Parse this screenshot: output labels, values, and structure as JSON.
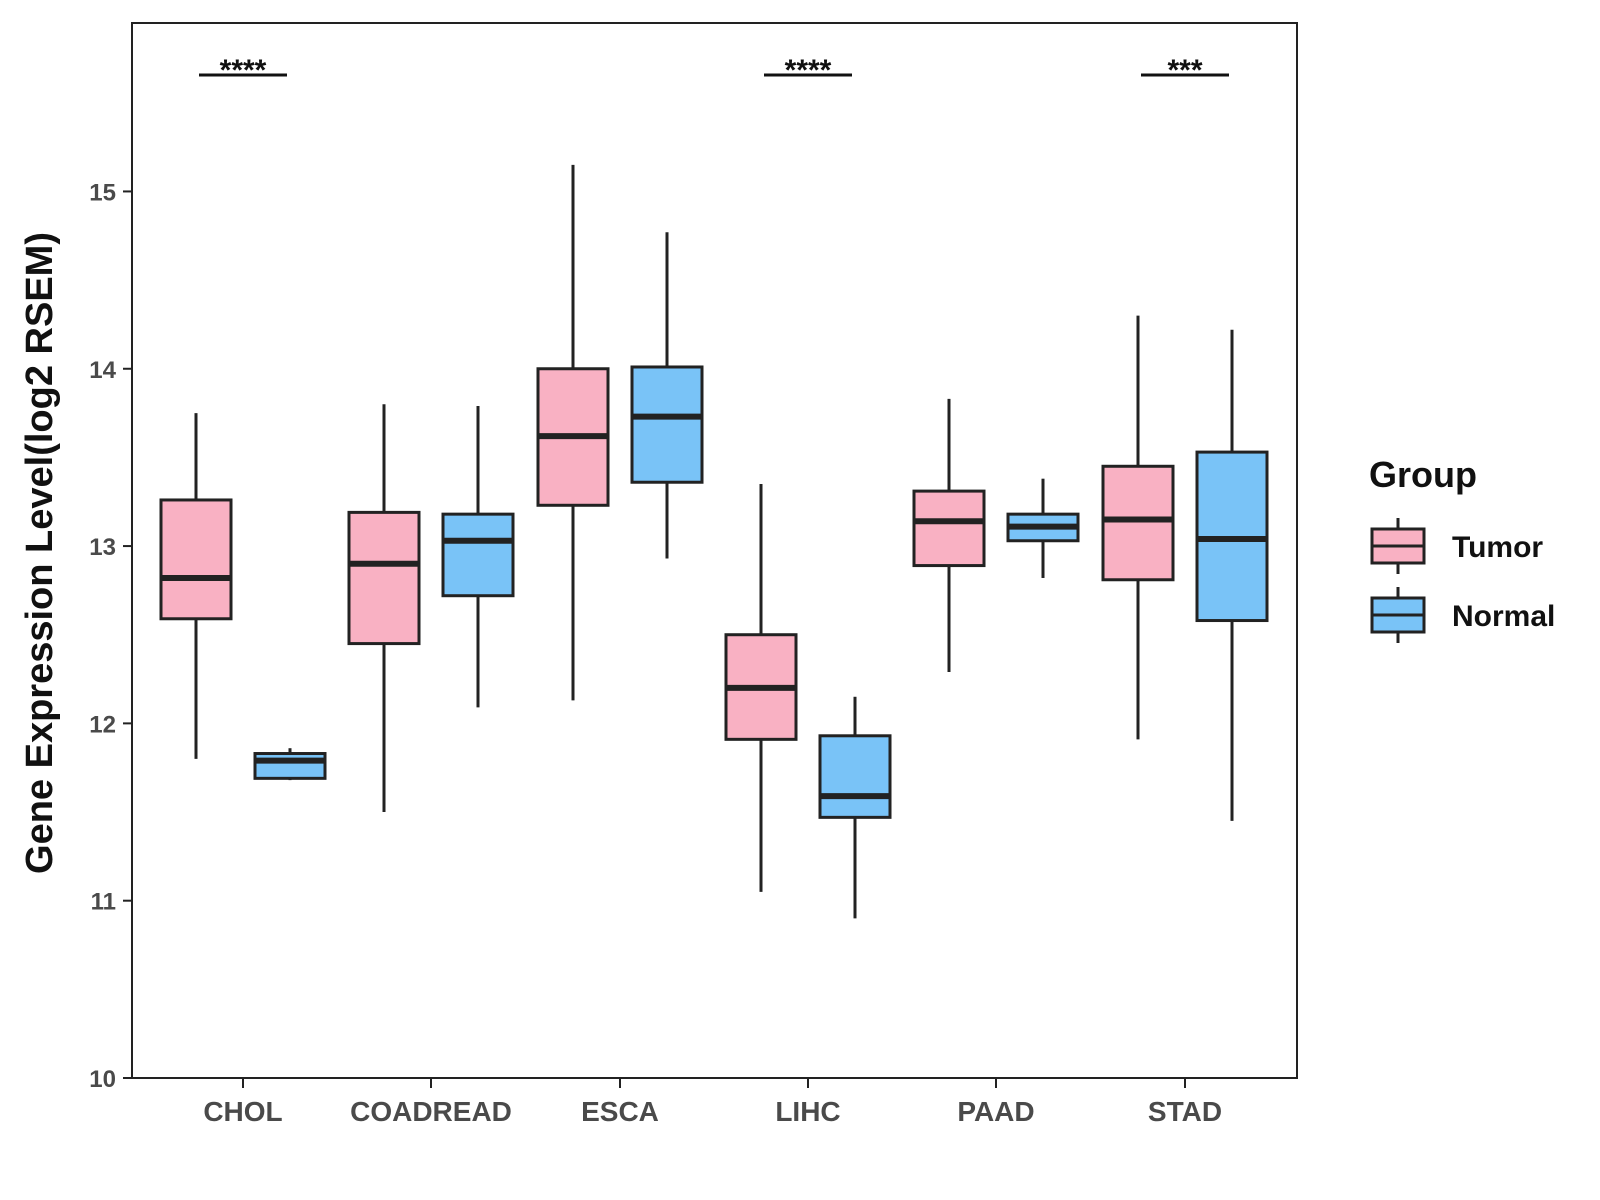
{
  "chart_data": {
    "type": "box",
    "title": "",
    "xlabel": "",
    "ylabel": "Gene Expression Level(log2 RSEM)",
    "ylim": [
      10,
      15.95
    ],
    "yticks": [
      10,
      11,
      12,
      13,
      14,
      15
    ],
    "categories": [
      "CHOL",
      "COADREAD",
      "ESCA",
      "LIHC",
      "PAAD",
      "STAD"
    ],
    "grid": false,
    "legend": {
      "title": "Group",
      "position": "right"
    },
    "colors": {
      "Tumor": "#f9b1c3",
      "Normal": "#79c3f7",
      "stroke": "#222222"
    },
    "series": [
      {
        "name": "Tumor",
        "boxes": [
          {
            "category": "CHOL",
            "min": 11.8,
            "q1": 12.59,
            "median": 12.82,
            "q3": 13.26,
            "max": 13.75
          },
          {
            "category": "COADREAD",
            "min": 11.5,
            "q1": 12.45,
            "median": 12.9,
            "q3": 13.19,
            "max": 13.8
          },
          {
            "category": "ESCA",
            "min": 12.13,
            "q1": 13.23,
            "median": 13.62,
            "q3": 14.0,
            "max": 15.15
          },
          {
            "category": "LIHC",
            "min": 11.05,
            "q1": 11.91,
            "median": 12.2,
            "q3": 12.5,
            "max": 13.35
          },
          {
            "category": "PAAD",
            "min": 12.29,
            "q1": 12.89,
            "median": 13.14,
            "q3": 13.31,
            "max": 13.83
          },
          {
            "category": "STAD",
            "min": 11.91,
            "q1": 12.81,
            "median": 13.15,
            "q3": 13.45,
            "max": 14.3
          }
        ]
      },
      {
        "name": "Normal",
        "boxes": [
          {
            "category": "CHOL",
            "min": 11.68,
            "q1": 11.69,
            "median": 11.79,
            "q3": 11.83,
            "max": 11.86
          },
          {
            "category": "COADREAD",
            "min": 12.09,
            "q1": 12.72,
            "median": 13.03,
            "q3": 13.18,
            "max": 13.79
          },
          {
            "category": "ESCA",
            "min": 12.93,
            "q1": 13.36,
            "median": 13.73,
            "q3": 14.01,
            "max": 14.77
          },
          {
            "category": "LIHC",
            "min": 10.9,
            "q1": 11.47,
            "median": 11.59,
            "q3": 11.93,
            "max": 12.15
          },
          {
            "category": "PAAD",
            "min": 12.82,
            "q1": 13.03,
            "median": 13.11,
            "q3": 13.18,
            "max": 13.38
          },
          {
            "category": "STAD",
            "min": 11.45,
            "q1": 12.58,
            "median": 13.04,
            "q3": 13.53,
            "max": 14.22
          }
        ]
      }
    ],
    "annotations": [
      {
        "category": "CHOL",
        "text": "****"
      },
      {
        "category": "LIHC",
        "text": "****"
      },
      {
        "category": "STAD",
        "text": "***"
      }
    ]
  }
}
